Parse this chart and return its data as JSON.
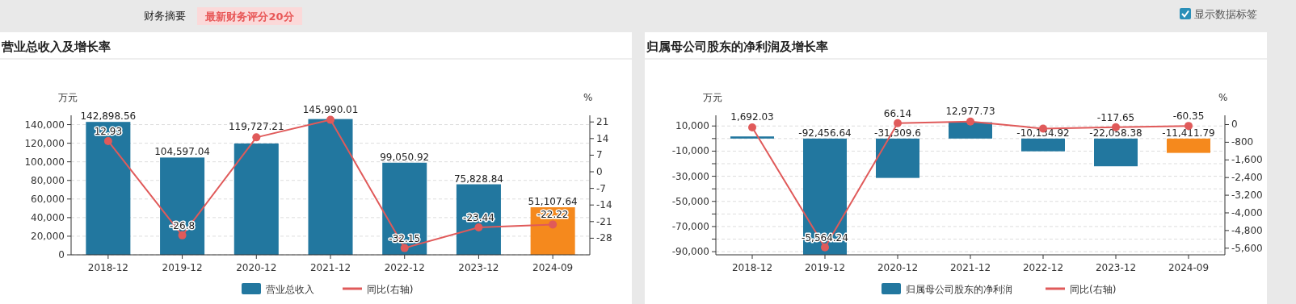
{
  "chart_data": [
    {
      "type": "other",
      "annotations": [
        "财务摘要",
        "最新财务评分20分",
        "显示数据标签"
      ]
    },
    {
      "type": "bar",
      "title": "营业总收入及增长率",
      "ylabel": "万元",
      "y2label": "%",
      "categories": [
        "2018-12",
        "2019-12",
        "2020-12",
        "2021-12",
        "2022-12",
        "2023-12",
        "2024-09"
      ],
      "series": [
        {
          "type": "bar",
          "name": "营业总收入",
          "color": "#22779f",
          "colors": [
            "#22779f",
            "#22779f",
            "#22779f",
            "#22779f",
            "#22779f",
            "#22779f",
            "#f5891d"
          ],
          "values": [
            142898.56,
            104597.04,
            119727.21,
            145990.01,
            99050.92,
            75828.84,
            51107.64
          ],
          "value_labels": [
            "142,898.56",
            "104,597.04",
            "119,727.21",
            "145,990.01",
            "99,050.92",
            "75,828.84",
            "51,107.64"
          ]
        },
        {
          "type": "line",
          "name": "同比(右轴)",
          "color": "#e05a5a",
          "axis": "y2",
          "marker": "circle",
          "values": [
            12.93,
            -26.8,
            14.5,
            21.9,
            -32.15,
            -23.44,
            -22.22
          ],
          "value_labels": [
            "12.93",
            "-26.8",
            null,
            null,
            "-32.15",
            "-23.44",
            "-22.22"
          ]
        }
      ],
      "ylim": [
        0,
        150000
      ],
      "yticks": [
        0,
        {
          "value": 20000,
          "label": "20,000"
        },
        {
          "value": 40000,
          "label": "40,000"
        },
        {
          "value": 60000,
          "label": "60,000"
        },
        {
          "value": 80000,
          "label": "80,000"
        },
        {
          "value": 100000,
          "label": "100,000"
        },
        {
          "value": 120000,
          "label": "120,000"
        },
        {
          "value": 140000,
          "label": "140,000"
        }
      ],
      "y2lim": [
        -35,
        23.8
      ],
      "y2ticks": [
        -28,
        -21,
        -14,
        -7,
        0,
        7,
        14,
        21
      ],
      "grid": "y",
      "legend": "bottom"
    },
    {
      "type": "bar",
      "title": "归属母公司股东的净利润及增长率",
      "ylabel": "万元",
      "y2label": "%",
      "categories": [
        "2018-12",
        "2019-12",
        "2020-12",
        "2021-12",
        "2022-12",
        "2023-12",
        "2024-09"
      ],
      "series": [
        {
          "type": "bar",
          "name": "归属母公司股东的净利润",
          "color": "#22779f",
          "colors": [
            "#22779f",
            "#22779f",
            "#22779f",
            "#22779f",
            "#22779f",
            "#22779f",
            "#f5891d"
          ],
          "values": [
            1692.03,
            -92456.64,
            -31309.6,
            12977.73,
            -10134.92,
            -22058.38,
            -11411.79
          ],
          "value_labels": [
            "1,692.03",
            "-92,456.64",
            "-31,309.6",
            "12,977.73",
            "-10,134.92",
            "-22,058.38",
            "-11,411.79"
          ]
        },
        {
          "type": "line",
          "name": "同比(右轴)",
          "color": "#e05a5a",
          "axis": "y2",
          "marker": "circle",
          "values": [
            -130,
            -5564.24,
            66.14,
            140,
            -180,
            -117.65,
            -60.35
          ],
          "value_labels": [
            null,
            "-5,564.24",
            "66.14",
            null,
            null,
            "-117.65",
            "-60.35"
          ]
        }
      ],
      "ylim": [
        -92500,
        18500
      ],
      "yticks": [
        {
          "value": -90000,
          "label": "-90,000"
        },
        {
          "value": -80000,
          "label": null
        },
        {
          "value": -70000,
          "label": "-70,000"
        },
        {
          "value": -60000,
          "label": null
        },
        {
          "value": -50000,
          "label": "-50,000"
        },
        {
          "value": -40000,
          "label": null
        },
        {
          "value": -30000,
          "label": "-30,000"
        },
        {
          "value": -20000,
          "label": null
        },
        {
          "value": -10000,
          "label": "-10,000"
        },
        {
          "value": 0,
          "label": null
        },
        {
          "value": 10000,
          "label": "10,000"
        }
      ],
      "y2lim": [
        -5900,
        420
      ],
      "y2ticks": [
        {
          "value": -5600,
          "label": "-5,600"
        },
        {
          "value": -4800,
          "label": "-4,800"
        },
        {
          "value": -4000,
          "label": "-4,000"
        },
        {
          "value": -3200,
          "label": "-3,200"
        },
        {
          "value": -2400,
          "label": "-2,400"
        },
        {
          "value": -1600,
          "label": "-1,600"
        },
        -800,
        0
      ],
      "grid": "y",
      "legend": "bottom"
    }
  ]
}
